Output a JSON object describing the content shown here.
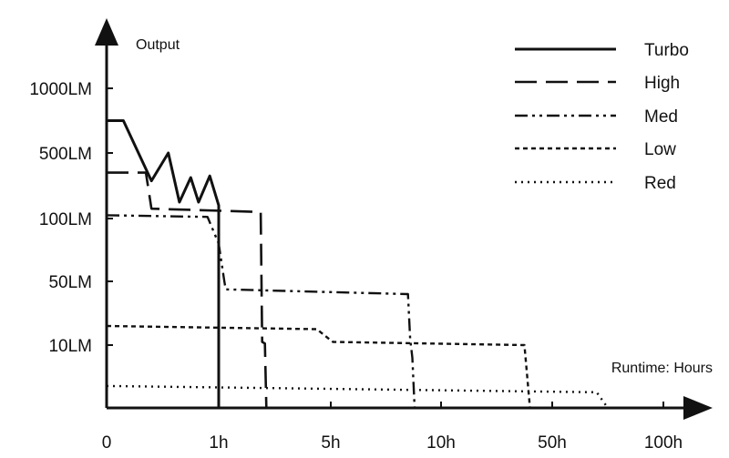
{
  "chart_data": {
    "type": "line",
    "xlabel": "Runtime: Hours",
    "ylabel": "Output",
    "x_ticks": [
      "0",
      "1h",
      "5h",
      "10h",
      "50h",
      "100h"
    ],
    "y_ticks": [
      "1000LM",
      "500LM",
      "100LM",
      "50LM",
      "10LM"
    ],
    "legend_position": "top-right",
    "grid": false,
    "series": [
      {
        "name": "Turbo",
        "style": "solid",
        "points": [
          [
            0,
            750
          ],
          [
            0.15,
            750
          ],
          [
            0.4,
            330
          ],
          [
            0.55,
            500
          ],
          [
            0.65,
            200
          ],
          [
            0.75,
            350
          ],
          [
            0.82,
            200
          ],
          [
            0.92,
            360
          ],
          [
            1.0,
            180
          ],
          [
            1.0,
            0
          ]
        ]
      },
      {
        "name": "High",
        "style": "dashed",
        "points": [
          [
            0,
            380
          ],
          [
            0.35,
            380
          ],
          [
            0.4,
            160
          ],
          [
            2.5,
            140
          ],
          [
            2.55,
            12
          ],
          [
            2.65,
            11
          ],
          [
            2.7,
            0
          ]
        ]
      },
      {
        "name": "Med",
        "style": "dash-dot",
        "points": [
          [
            0,
            120
          ],
          [
            0.9,
            110
          ],
          [
            1.0,
            80
          ],
          [
            1.2,
            50
          ],
          [
            1.25,
            45
          ],
          [
            8.5,
            42
          ],
          [
            8.6,
            14
          ],
          [
            8.7,
            8
          ],
          [
            8.8,
            0
          ]
        ]
      },
      {
        "name": "Low",
        "style": "dashed-short",
        "points": [
          [
            0,
            22
          ],
          [
            4.5,
            20
          ],
          [
            5.0,
            13
          ],
          [
            5.1,
            12
          ],
          [
            40,
            10
          ],
          [
            42,
            0
          ]
        ]
      },
      {
        "name": "Red",
        "style": "dotted",
        "points": [
          [
            0,
            3.5
          ],
          [
            70,
            2.5
          ],
          [
            75,
            0
          ]
        ]
      }
    ]
  }
}
